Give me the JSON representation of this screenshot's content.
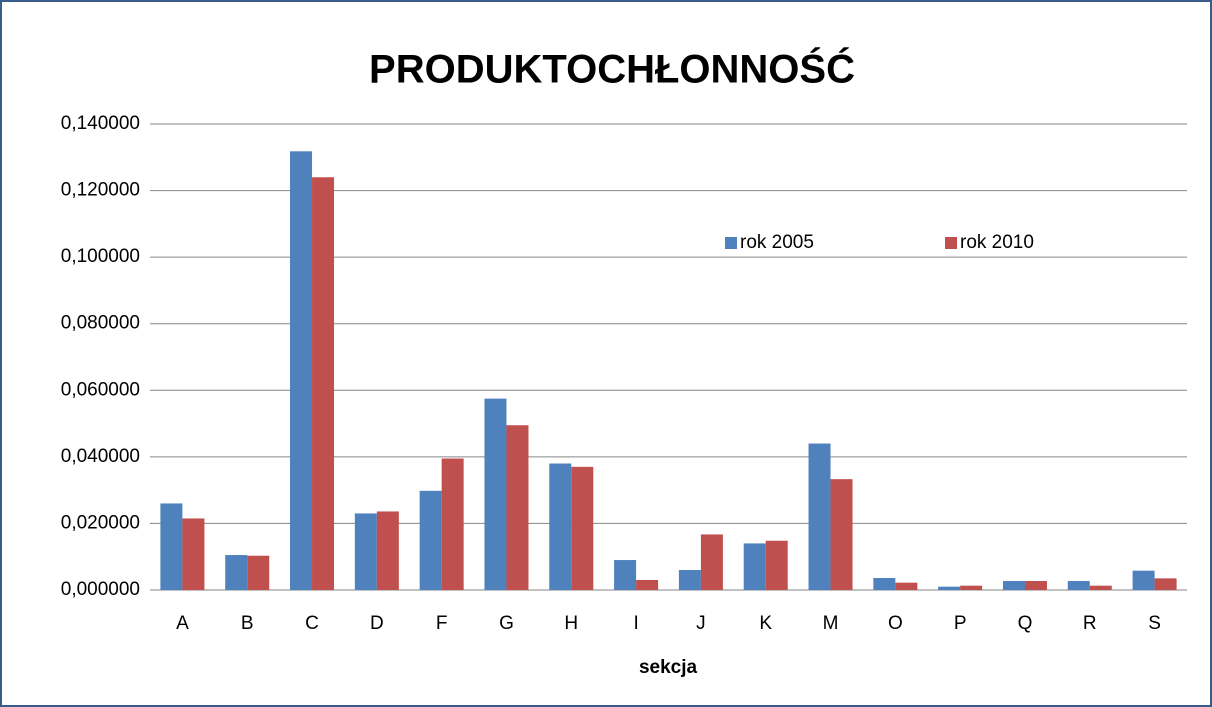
{
  "chart_data": {
    "type": "bar",
    "title": "PRODUKTOCHŁONNOŚĆ",
    "x_label": "sekcja",
    "categories": [
      "A",
      "B",
      "C",
      "D",
      "F",
      "G",
      "H",
      "I",
      "J",
      "K",
      "M",
      "O",
      "P",
      "Q",
      "R",
      "S"
    ],
    "series": [
      {
        "name": "rok 2005",
        "color": "#4f81bd",
        "values": [
          0.026,
          0.0105,
          0.1318,
          0.023,
          0.0298,
          0.0575,
          0.038,
          0.009,
          0.006,
          0.014,
          0.044,
          0.0036,
          0.001,
          0.0027,
          0.0027,
          0.0058
        ]
      },
      {
        "name": "rok 2010",
        "color": "#c0504d",
        "values": [
          0.0215,
          0.0103,
          0.124,
          0.0236,
          0.0395,
          0.0495,
          0.037,
          0.003,
          0.0167,
          0.0148,
          0.0333,
          0.0022,
          0.0013,
          0.0027,
          0.0013,
          0.0035
        ]
      }
    ],
    "ylim": [
      0,
      0.14
    ],
    "yticks": [
      {
        "value": 0,
        "label": "0,000000"
      },
      {
        "value": 0.02,
        "label": "0,020000"
      },
      {
        "value": 0.04,
        "label": "0,040000"
      },
      {
        "value": 0.06,
        "label": "0,060000"
      },
      {
        "value": 0.08,
        "label": "0,080000"
      },
      {
        "value": 0.1,
        "label": "0,100000"
      },
      {
        "value": 0.12,
        "label": "0,120000"
      },
      {
        "value": 0.14,
        "label": "0,140000"
      }
    ],
    "grid": true,
    "legend": "upper right"
  }
}
